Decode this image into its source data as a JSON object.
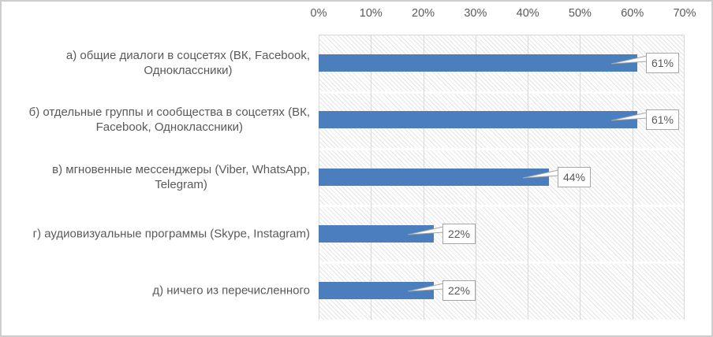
{
  "chart_data": {
    "type": "bar",
    "orientation": "horizontal",
    "title": "",
    "categories": [
      "а) общие диалоги в соцсетях (ВК, Facebook,\nОдноклассники)",
      "б) отдельные группы и сообщества в соцсетях (ВК,\nFacebook, Одноклассники)",
      "в) мгновенные мессенджеры (Viber, WhatsApp,\nTelegram)",
      "г) аудиовизуальные программы (Skype, Instagram)",
      "д) ничего из перечисленного"
    ],
    "values": [
      61,
      61,
      44,
      22,
      22
    ],
    "value_labels": [
      "61%",
      "61%",
      "44%",
      "22%",
      "22%"
    ],
    "x_ticks": [
      "0%",
      "10%",
      "20%",
      "30%",
      "40%",
      "50%",
      "60%",
      "70%"
    ],
    "xlim": [
      0,
      70
    ],
    "xlabel": "",
    "ylabel": "",
    "axis_position": "top",
    "grid": "vertical-major",
    "legend_position": "none",
    "data_label_style": "callout",
    "plot_fill": "light-diagonal-hatch"
  },
  "colors": {
    "bar": "#4A7EBD",
    "text": "#595959",
    "gridline": "#D9D9D9",
    "band_separator": "#FFFFFF",
    "callout_border": "#A6A6A6",
    "callout_fill": "#FFFFFF",
    "frame_border": "#CDCDCD",
    "background": "#FFFFFF"
  }
}
